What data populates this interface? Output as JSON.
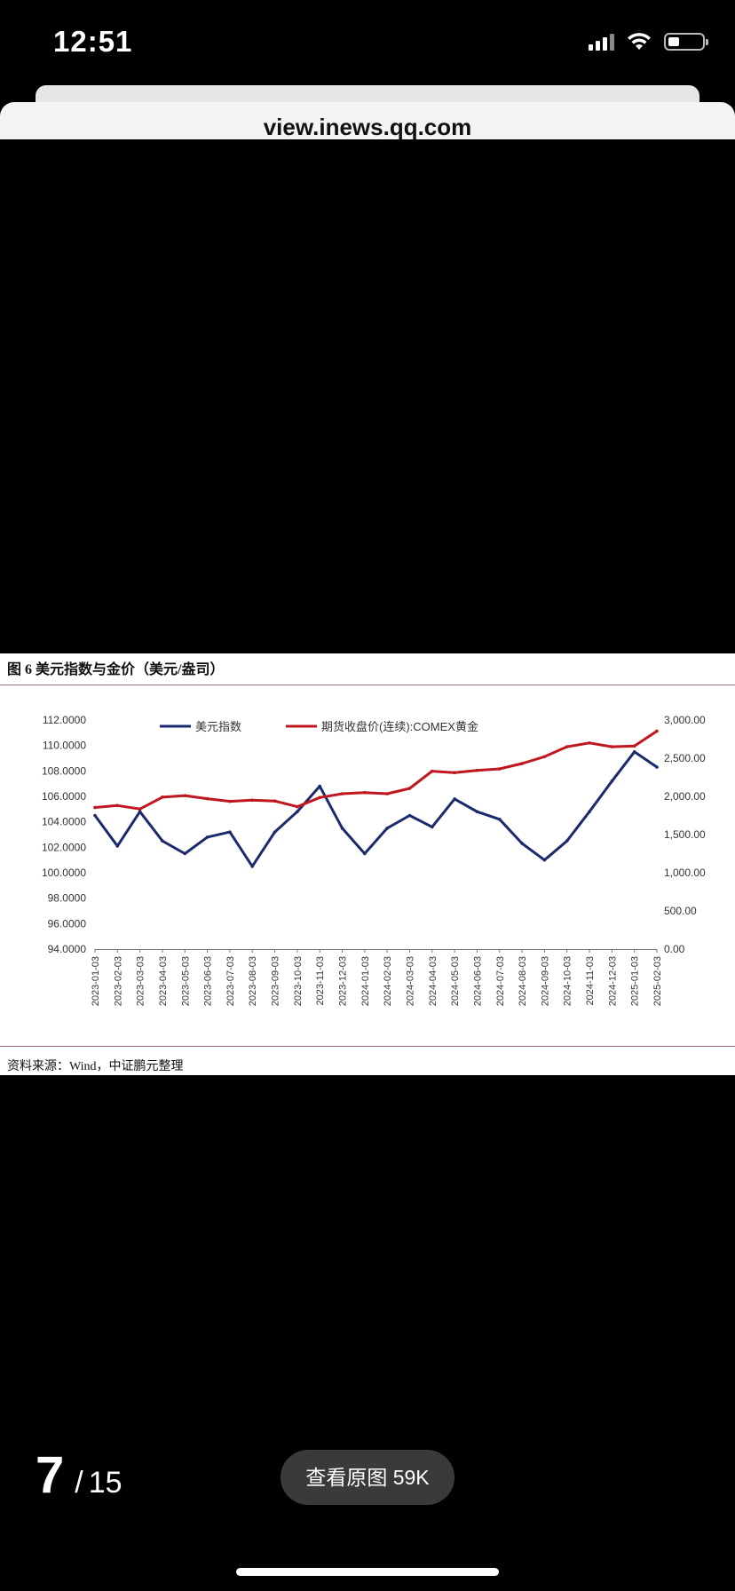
{
  "status_bar": {
    "time": "12:51",
    "signal_icon": "cellular-signal-icon",
    "wifi_icon": "wifi-icon",
    "battery_icon": "battery-icon"
  },
  "browser": {
    "url": "view.inews.qq.com"
  },
  "figure": {
    "title": "图 6  美元指数与金价（美元/盎司）",
    "source": "资料来源：Wind，中证鹏元整理"
  },
  "chart_data": {
    "type": "line",
    "title": "",
    "legend_position": "top",
    "x": [
      "2023-01-03",
      "2023-02-03",
      "2023-03-03",
      "2023-04-03",
      "2023-05-03",
      "2023-06-03",
      "2023-07-03",
      "2023-08-03",
      "2023-09-03",
      "2023-10-03",
      "2023-11-03",
      "2023-12-03",
      "2024-01-03",
      "2024-02-03",
      "2024-03-03",
      "2024-04-03",
      "2024-05-03",
      "2024-06-03",
      "2024-07-03",
      "2024-08-03",
      "2024-09-03",
      "2024-10-03",
      "2024-11-03",
      "2024-12-03",
      "2025-01-03",
      "2025-02-03"
    ],
    "y_left": {
      "ylim": [
        94,
        112
      ],
      "ticks": [
        "112.0000",
        "110.0000",
        "108.0000",
        "106.0000",
        "104.0000",
        "102.0000",
        "100.0000",
        "98.0000",
        "96.0000",
        "94.0000"
      ]
    },
    "y_right": {
      "ylim": [
        0,
        3000
      ],
      "ticks": [
        "3,000.00",
        "2,500.00",
        "2,000.00",
        "1,500.00",
        "1,000.00",
        "500.00",
        "0.00"
      ]
    },
    "series": [
      {
        "name": "美元指数",
        "axis": "left",
        "color": "#1a2a6c",
        "values": [
          104.5,
          102.1,
          104.8,
          102.5,
          101.5,
          102.8,
          103.2,
          100.5,
          103.2,
          104.8,
          106.8,
          103.5,
          101.5,
          103.5,
          104.5,
          103.6,
          105.8,
          104.8,
          104.2,
          102.3,
          101.0,
          102.5,
          104.8,
          107.2,
          109.5,
          108.3
        ]
      },
      {
        "name": "期货收盘价(连续):COMEX黄金",
        "axis": "right",
        "color": "#c0161f",
        "values": [
          1855,
          1880,
          1835,
          1990,
          2010,
          1970,
          1935,
          1950,
          1940,
          1865,
          1985,
          2035,
          2050,
          2035,
          2105,
          2330,
          2310,
          2340,
          2360,
          2430,
          2520,
          2650,
          2700,
          2650,
          2660,
          2855
        ]
      }
    ]
  },
  "viewer": {
    "current": "7",
    "separator": "/",
    "total": "15",
    "view_original_label": "查看原图 59K"
  }
}
